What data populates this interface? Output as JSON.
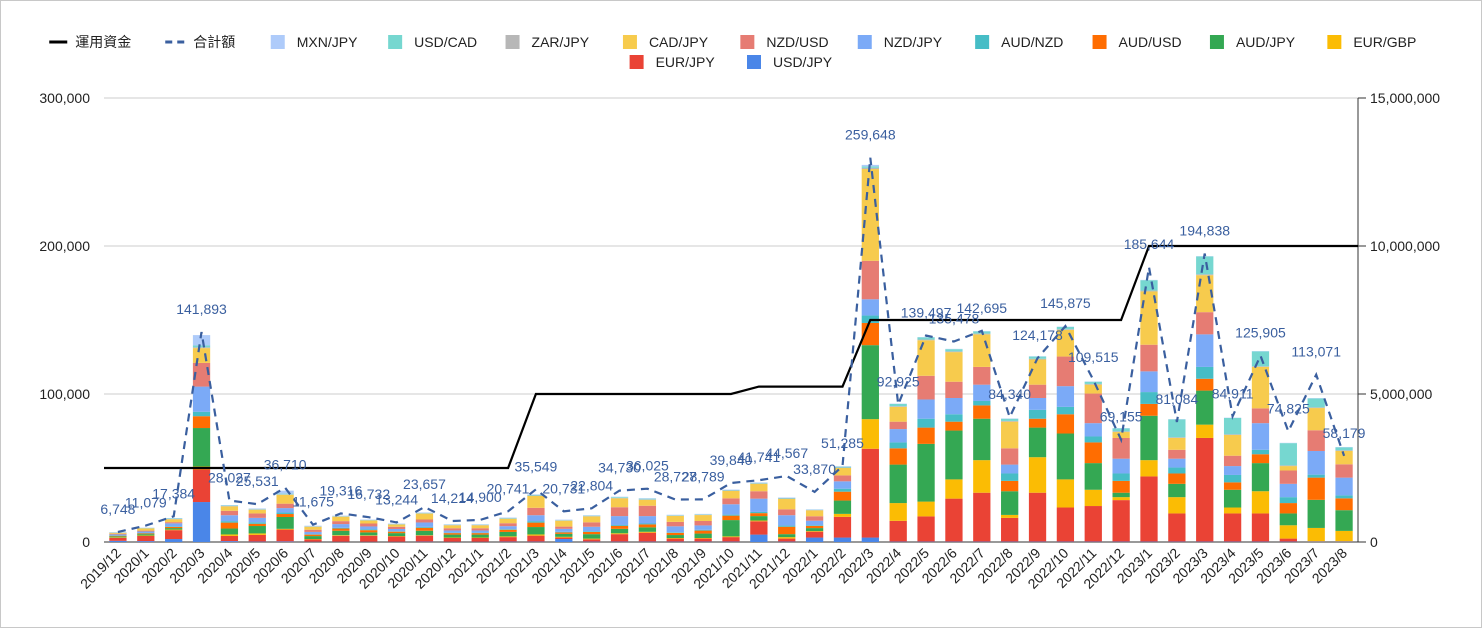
{
  "chart_data": {
    "type": "bar",
    "stacked": true,
    "categories": [
      "2019/12",
      "2020/1",
      "2020/2",
      "2020/3",
      "2020/4",
      "2020/5",
      "2020/6",
      "2020/7",
      "2020/8",
      "2020/9",
      "2020/10",
      "2020/11",
      "2020/12",
      "2021/1",
      "2021/2",
      "2021/3",
      "2021/4",
      "2021/5",
      "2021/6",
      "2021/7",
      "2021/8",
      "2021/9",
      "2021/10",
      "2021/11",
      "2021/12",
      "2022/1",
      "2022/2",
      "2022/3",
      "2022/4",
      "2022/5",
      "2022/6",
      "2022/7",
      "2022/8",
      "2022/9",
      "2022/10",
      "2022/11",
      "2022/12",
      "2023/1",
      "2023/2",
      "2023/3",
      "2023/4",
      "2023/5",
      "2023/6",
      "2023/7",
      "2023/8"
    ],
    "stack_order": [
      "USD/JPY",
      "EUR/JPY",
      "EUR/GBP",
      "AUD/JPY",
      "AUD/USD",
      "AUD/NZD",
      "NZD/JPY",
      "NZD/USD",
      "CAD/JPY",
      "ZAR/JPY",
      "USD/CAD",
      "MXN/JPY"
    ],
    "series": [
      {
        "name": "USD/JPY",
        "color": "#4a86e8",
        "values": [
          800,
          600,
          2000,
          27000,
          600,
          300,
          400,
          200,
          200,
          200,
          200,
          300,
          200,
          200,
          300,
          300,
          2000,
          300,
          300,
          300,
          300,
          300,
          300,
          5000,
          300,
          3000,
          3000,
          3000,
          300,
          300,
          300,
          300,
          300,
          300,
          300,
          300,
          300,
          300,
          300,
          300,
          300,
          300,
          300,
          300,
          300
        ]
      },
      {
        "name": "EUR/JPY",
        "color": "#ea4335",
        "values": [
          2000,
          3500,
          6000,
          22000,
          3500,
          4500,
          8000,
          1500,
          4000,
          4000,
          3500,
          4000,
          2500,
          2500,
          3000,
          4000,
          1000,
          1500,
          5000,
          6000,
          2000,
          2000,
          3000,
          9000,
          2000,
          4000,
          14000,
          60000,
          14000,
          17000,
          29000,
          33000,
          16000,
          33000,
          23000,
          24000,
          28000,
          44000,
          19000,
          70000,
          19000,
          19000,
          2000,
          200,
          200
        ]
      },
      {
        "name": "EUR/GBP",
        "color": "#fbbc04",
        "values": [
          300,
          300,
          400,
          2000,
          1000,
          1000,
          500,
          300,
          400,
          300,
          300,
          300,
          300,
          300,
          500,
          800,
          500,
          500,
          600,
          600,
          400,
          400,
          500,
          500,
          1000,
          400,
          2000,
          20000,
          12000,
          10000,
          13000,
          22000,
          2000,
          24000,
          19000,
          11000,
          2000,
          11000,
          11000,
          9000,
          4000,
          15000,
          9000,
          9000,
          7000
        ]
      },
      {
        "name": "AUD/JPY",
        "color": "#34a853",
        "values": [
          700,
          900,
          1000,
          26000,
          4000,
          5000,
          8000,
          2000,
          3000,
          2000,
          2000,
          3000,
          2000,
          2000,
          3000,
          5000,
          2000,
          3000,
          3000,
          3000,
          2000,
          3000,
          11000,
          3000,
          2000,
          2000,
          9000,
          50000,
          26000,
          39000,
          33000,
          28000,
          16000,
          20000,
          31000,
          18000,
          3000,
          30000,
          9000,
          23000,
          12000,
          19000,
          8000,
          19000,
          14000
        ]
      },
      {
        "name": "AUD/USD",
        "color": "#ff6d01",
        "values": [
          400,
          500,
          800,
          8000,
          4000,
          1500,
          2000,
          1000,
          1500,
          1500,
          1000,
          2000,
          1000,
          1000,
          1500,
          3000,
          1000,
          1500,
          2000,
          2000,
          1500,
          2000,
          3000,
          2000,
          5000,
          1500,
          6000,
          15000,
          11000,
          11000,
          6000,
          9000,
          7000,
          6000,
          13000,
          14000,
          8000,
          8000,
          7000,
          8000,
          5000,
          6000,
          7000,
          15000,
          8000
        ]
      },
      {
        "name": "AUD/NZD",
        "color": "#46bdc6",
        "values": [
          200,
          300,
          400,
          3000,
          1000,
          1000,
          1000,
          300,
          500,
          500,
          300,
          600,
          300,
          300,
          400,
          1000,
          400,
          500,
          600,
          600,
          400,
          500,
          700,
          800,
          800,
          500,
          2000,
          5000,
          4000,
          6000,
          5000,
          3000,
          5000,
          6000,
          5000,
          4000,
          5000,
          8000,
          4000,
          8000,
          5000,
          3000,
          4000,
          2000,
          2000
        ]
      },
      {
        "name": "NZD/JPY",
        "color": "#7baaf7",
        "values": [
          700,
          1000,
          2000,
          17000,
          4000,
          3000,
          3000,
          1500,
          2500,
          2000,
          1500,
          3000,
          1500,
          1500,
          2000,
          4000,
          2000,
          3000,
          6000,
          5000,
          4000,
          3000,
          7000,
          9000,
          7000,
          3000,
          5000,
          11000,
          9000,
          13000,
          11000,
          11000,
          6000,
          8000,
          14000,
          9000,
          10000,
          14000,
          6000,
          22000,
          6000,
          18000,
          9000,
          16000,
          12000
        ]
      },
      {
        "name": "NZD/USD",
        "color": "#e67c73",
        "values": [
          500,
          600,
          800,
          16000,
          3000,
          3000,
          3000,
          1500,
          2000,
          2000,
          1500,
          2000,
          1500,
          1500,
          2000,
          5000,
          1500,
          3000,
          6000,
          7000,
          3000,
          3000,
          4000,
          5000,
          4000,
          3000,
          4000,
          26000,
          5000,
          16000,
          11000,
          12000,
          11000,
          9000,
          20000,
          20000,
          14000,
          18000,
          6000,
          15000,
          7000,
          10000,
          9000,
          14000,
          9000
        ]
      },
      {
        "name": "CAD/JPY",
        "color": "#f7cb4d",
        "values": [
          600,
          1500,
          2000,
          10000,
          3000,
          2500,
          6000,
          2000,
          3000,
          2000,
          1500,
          4000,
          2000,
          2000,
          3000,
          8000,
          4000,
          4000,
          6000,
          4000,
          4000,
          4000,
          5000,
          5000,
          7000,
          4000,
          5000,
          62000,
          10000,
          24000,
          20000,
          22000,
          18000,
          17000,
          18000,
          6000,
          4000,
          36000,
          8000,
          25000,
          14000,
          28000,
          3000,
          15000,
          9000
        ]
      },
      {
        "name": "ZAR/JPY",
        "color": "#b7b7b7",
        "values": [
          100,
          100,
          200,
          600,
          300,
          300,
          300,
          200,
          200,
          200,
          200,
          200,
          200,
          200,
          200,
          300,
          200,
          200,
          300,
          300,
          200,
          200,
          300,
          300,
          300,
          200,
          300,
          800,
          500,
          500,
          500,
          500,
          500,
          500,
          500,
          500,
          500,
          600,
          500,
          600,
          500,
          500,
          500,
          500,
          500
        ]
      },
      {
        "name": "USD/CAD",
        "color": "#76d7d0",
        "values": [
          200,
          200,
          300,
          1200,
          300,
          300,
          500,
          200,
          200,
          200,
          200,
          300,
          200,
          200,
          300,
          500,
          200,
          300,
          500,
          500,
          300,
          300,
          300,
          400,
          400,
          200,
          600,
          1000,
          1500,
          1500,
          1500,
          1500,
          1500,
          1500,
          1500,
          1500,
          2000,
          7000,
          12000,
          12000,
          11000,
          10000,
          15000,
          6000,
          2000
        ]
      },
      {
        "name": "MXN/JPY",
        "color": "#aecbfa",
        "values": [
          200,
          200,
          300,
          7000,
          300,
          300,
          2000,
          300,
          300,
          300,
          300,
          300,
          300,
          300,
          300,
          300,
          300,
          300,
          300,
          300,
          300,
          300,
          300,
          300,
          300,
          300,
          300,
          1000,
          200,
          200,
          200,
          200,
          200,
          200,
          200,
          200,
          200,
          200,
          200,
          200,
          200,
          200,
          200,
          200,
          200
        ]
      }
    ],
    "total": {
      "name": "合計額",
      "color": "#3a5f9f",
      "values": [
        6748,
        11079,
        17384,
        141893,
        28027,
        25531,
        36710,
        11675,
        19316,
        16732,
        13244,
        23657,
        14214,
        14900,
        20741,
        35549,
        20731,
        22804,
        34730,
        36025,
        28727,
        28789,
        39840,
        41741,
        44567,
        33870,
        51285,
        259648,
        92925,
        139497,
        135478,
        142695,
        84340,
        124178,
        145875,
        109515,
        69155,
        185644,
        81084,
        194838,
        84911,
        125905,
        74825,
        113071,
        58179
      ],
      "labels": [
        "6,748",
        "11,079",
        "17,384",
        "141,893",
        "28,027",
        "25,531",
        "36,710",
        "11,675",
        "19,316",
        "16,732",
        "13,244",
        "23,657",
        "14,214",
        "14,900",
        "20,741",
        "35,549",
        "20,731",
        "22,804",
        "34,730",
        "36,025",
        "28,727",
        "28,789",
        "39,840",
        "41,741",
        "44,567",
        "33,870",
        "51,285",
        "259,648",
        "92,925",
        "139,497",
        "135,478",
        "142,695",
        "84,340",
        "124,178",
        "145,875",
        "109,515",
        "69,155",
        "185,644",
        "81,084",
        "194,838",
        "84,911",
        "125,905",
        "74,825",
        "113,071",
        "58,179"
      ]
    },
    "fund": {
      "name": "運用資金",
      "color": "#000000",
      "axis": "right",
      "values": [
        2500000,
        2500000,
        2500000,
        2500000,
        2500000,
        2500000,
        2500000,
        2500000,
        2500000,
        2500000,
        2500000,
        2500000,
        2500000,
        2500000,
        2500000,
        5000000,
        5000000,
        5000000,
        5000000,
        5000000,
        5000000,
        5000000,
        5000000,
        5250000,
        5250000,
        5250000,
        5250000,
        7500000,
        7500000,
        7500000,
        7500000,
        7500000,
        7500000,
        7500000,
        7500000,
        7500000,
        7500000,
        10000000,
        10000000,
        10000000,
        10000000,
        10000000,
        10000000,
        10000000,
        10000000
      ]
    },
    "ylim": [
      0,
      300000
    ],
    "yticks": [
      "0",
      "100,000",
      "200,000",
      "300,000"
    ],
    "y2lim": [
      0,
      15000000
    ],
    "y2ticks": [
      "0",
      "5,000,000",
      "10,000,000",
      "15,000,000"
    ],
    "legend": {
      "placement": "top",
      "items": [
        {
          "name": "運用資金",
          "type": "line",
          "color": "#000000"
        },
        {
          "name": "合計額",
          "type": "dash",
          "color": "#3a5f9f"
        },
        {
          "name": "MXN/JPY",
          "type": "box",
          "color": "#aecbfa"
        },
        {
          "name": "USD/CAD",
          "type": "box",
          "color": "#76d7d0"
        },
        {
          "name": "ZAR/JPY",
          "type": "box",
          "color": "#b7b7b7"
        },
        {
          "name": "CAD/JPY",
          "type": "box",
          "color": "#f7cb4d"
        },
        {
          "name": "NZD/USD",
          "type": "box",
          "color": "#e67c73"
        },
        {
          "name": "NZD/JPY",
          "type": "box",
          "color": "#7baaf7"
        },
        {
          "name": "AUD/NZD",
          "type": "box",
          "color": "#46bdc6"
        },
        {
          "name": "AUD/USD",
          "type": "box",
          "color": "#ff6d01"
        },
        {
          "name": "AUD/JPY",
          "type": "box",
          "color": "#34a853"
        },
        {
          "name": "EUR/GBP",
          "type": "box",
          "color": "#fbbc04"
        },
        {
          "name": "EUR/JPY",
          "type": "box",
          "color": "#ea4335"
        },
        {
          "name": "USD/JPY",
          "type": "box",
          "color": "#4a86e8"
        }
      ]
    },
    "grid": true
  }
}
